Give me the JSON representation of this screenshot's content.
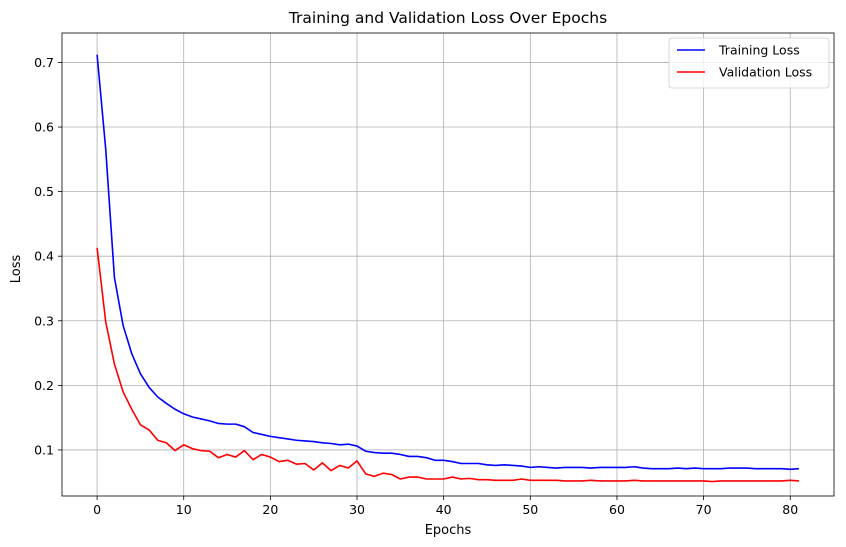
{
  "chart_data": {
    "type": "line",
    "title": "Training and Validation Loss Over Epochs",
    "xlabel": "Epochs",
    "ylabel": "Loss",
    "xlim": [
      -4.05,
      85.05
    ],
    "ylim": [
      0.0287,
      0.7456
    ],
    "xticks": [
      0,
      10,
      20,
      30,
      40,
      50,
      60,
      70,
      80
    ],
    "yticks": [
      0.1,
      0.2,
      0.3,
      0.4,
      0.5,
      0.6,
      0.7
    ],
    "grid": true,
    "legend_position": "top-right",
    "x": [
      0,
      1,
      2,
      3,
      4,
      5,
      6,
      7,
      8,
      9,
      10,
      11,
      12,
      13,
      14,
      15,
      16,
      17,
      18,
      19,
      20,
      21,
      22,
      23,
      24,
      25,
      26,
      27,
      28,
      29,
      30,
      31,
      32,
      33,
      34,
      35,
      36,
      37,
      38,
      39,
      40,
      41,
      42,
      43,
      44,
      45,
      46,
      47,
      48,
      49,
      50,
      51,
      52,
      53,
      54,
      55,
      56,
      57,
      58,
      59,
      60,
      61,
      62,
      63,
      64,
      65,
      66,
      67,
      68,
      69,
      70,
      71,
      72,
      73,
      74,
      75,
      76,
      77,
      78,
      79,
      80,
      81
    ],
    "series": [
      {
        "name": "Training Loss",
        "color": "#0000ff",
        "values": [
          0.712,
          0.565,
          0.367,
          0.293,
          0.249,
          0.218,
          0.197,
          0.182,
          0.172,
          0.163,
          0.156,
          0.151,
          0.148,
          0.145,
          0.141,
          0.14,
          0.14,
          0.136,
          0.127,
          0.124,
          0.121,
          0.119,
          0.117,
          0.115,
          0.114,
          0.113,
          0.111,
          0.11,
          0.108,
          0.109,
          0.106,
          0.098,
          0.096,
          0.095,
          0.095,
          0.093,
          0.09,
          0.09,
          0.088,
          0.084,
          0.084,
          0.082,
          0.079,
          0.079,
          0.079,
          0.077,
          0.076,
          0.077,
          0.076,
          0.075,
          0.073,
          0.074,
          0.073,
          0.072,
          0.073,
          0.073,
          0.073,
          0.072,
          0.073,
          0.073,
          0.073,
          0.073,
          0.074,
          0.072,
          0.071,
          0.071,
          0.071,
          0.072,
          0.071,
          0.072,
          0.071,
          0.071,
          0.071,
          0.072,
          0.072,
          0.072,
          0.071,
          0.071,
          0.071,
          0.071,
          0.07,
          0.071
        ]
      },
      {
        "name": "Validation Loss",
        "color": "#ff0000",
        "values": [
          0.413,
          0.298,
          0.233,
          0.19,
          0.163,
          0.139,
          0.131,
          0.115,
          0.111,
          0.099,
          0.108,
          0.102,
          0.099,
          0.098,
          0.088,
          0.093,
          0.089,
          0.099,
          0.085,
          0.093,
          0.089,
          0.082,
          0.084,
          0.078,
          0.079,
          0.069,
          0.08,
          0.068,
          0.076,
          0.072,
          0.083,
          0.063,
          0.059,
          0.064,
          0.062,
          0.055,
          0.058,
          0.058,
          0.055,
          0.055,
          0.055,
          0.058,
          0.055,
          0.056,
          0.054,
          0.054,
          0.053,
          0.053,
          0.053,
          0.055,
          0.053,
          0.053,
          0.053,
          0.053,
          0.052,
          0.052,
          0.052,
          0.053,
          0.052,
          0.052,
          0.052,
          0.052,
          0.053,
          0.052,
          0.052,
          0.052,
          0.052,
          0.052,
          0.052,
          0.052,
          0.052,
          0.051,
          0.052,
          0.052,
          0.052,
          0.052,
          0.052,
          0.052,
          0.052,
          0.052,
          0.053,
          0.052
        ]
      }
    ]
  }
}
